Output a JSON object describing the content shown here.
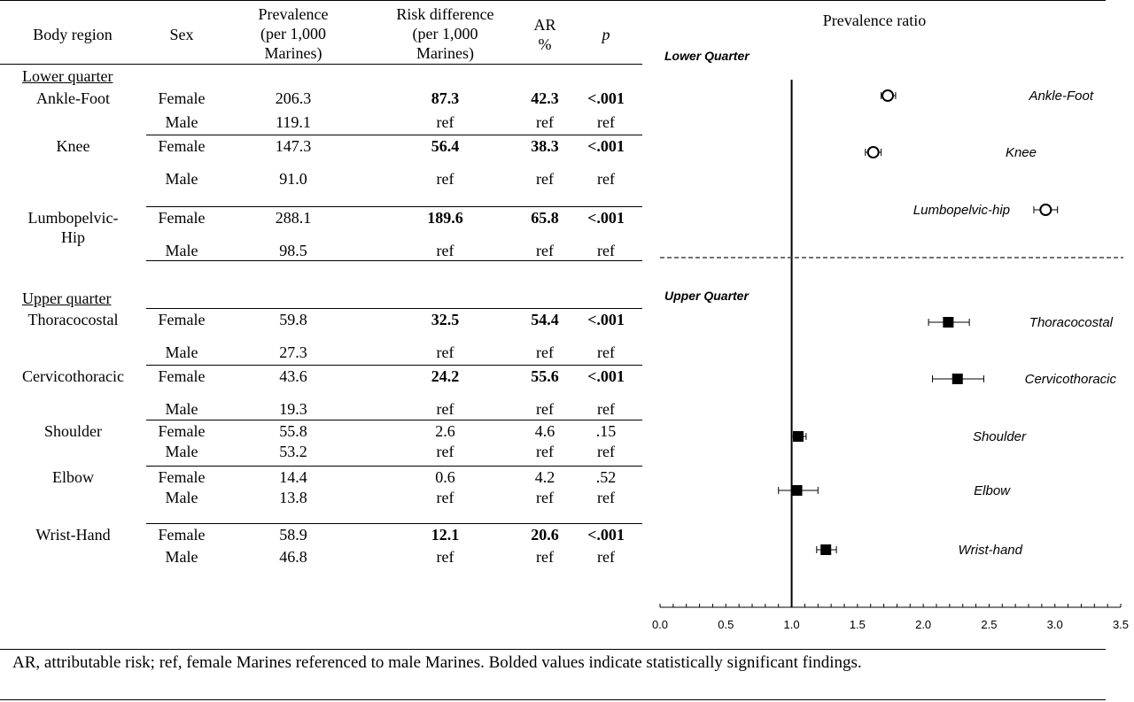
{
  "table": {
    "headers": {
      "region": "Body region",
      "sex": "Sex",
      "prevalence": [
        "Prevalence",
        "(per 1,000",
        "Marines)"
      ],
      "risk_difference": [
        "Risk difference",
        "(per 1,000",
        "Marines)"
      ],
      "ar": [
        "AR",
        "%"
      ],
      "p": "p"
    },
    "sections": [
      "Lower quarter",
      "Upper quarter"
    ],
    "rows": [
      {
        "region": "Ankle-Foot",
        "female": {
          "sex": "Female",
          "prev": "206.3",
          "rd": "87.3",
          "ar": "42.3",
          "p": "<.001"
        },
        "male": {
          "sex": "Male",
          "prev": "119.1",
          "rd": "ref",
          "ar": "ref",
          "p": "ref"
        }
      },
      {
        "region": "Knee",
        "female": {
          "sex": "Female",
          "prev": "147.3",
          "rd": "56.4",
          "ar": "38.3",
          "p": "<.001"
        },
        "male": {
          "sex": "Male",
          "prev": "91.0",
          "rd": "ref",
          "ar": "ref",
          "p": "ref"
        }
      },
      {
        "region": "Lumbopelvic-\nHip",
        "female": {
          "sex": "Female",
          "prev": "288.1",
          "rd": "189.6",
          "ar": "65.8",
          "p": "<.001"
        },
        "male": {
          "sex": "Male",
          "prev": "98.5",
          "rd": "ref",
          "ar": "ref",
          "p": "ref"
        }
      },
      {
        "region": "Thoracocostal",
        "female": {
          "sex": "Female",
          "prev": "59.8",
          "rd": "32.5",
          "ar": "54.4",
          "p": "<.001"
        },
        "male": {
          "sex": "Male",
          "prev": "27.3",
          "rd": "ref",
          "ar": "ref",
          "p": "ref"
        }
      },
      {
        "region": "Cervicothoracic",
        "female": {
          "sex": "Female",
          "prev": "43.6",
          "rd": "24.2",
          "ar": "55.6",
          "p": "<.001"
        },
        "male": {
          "sex": "Male",
          "prev": "19.3",
          "rd": "ref",
          "ar": "ref",
          "p": "ref"
        }
      },
      {
        "region": "Shoulder",
        "female": {
          "sex": "Female",
          "prev": "55.8",
          "rd": "2.6",
          "ar": "4.6",
          "p": ".15"
        },
        "male": {
          "sex": "Male",
          "prev": "53.2",
          "rd": "ref",
          "ar": "ref",
          "p": "ref"
        }
      },
      {
        "region": "Elbow",
        "female": {
          "sex": "Female",
          "prev": "14.4",
          "rd": "0.6",
          "ar": "4.2",
          "p": ".52"
        },
        "male": {
          "sex": "Male",
          "prev": "13.8",
          "rd": "ref",
          "ar": "ref",
          "p": "ref"
        }
      },
      {
        "region": "Wrist-Hand",
        "female": {
          "sex": "Female",
          "prev": "58.9",
          "rd": "12.1",
          "ar": "20.6",
          "p": "<.001"
        },
        "male": {
          "sex": "Male",
          "prev": "46.8",
          "rd": "ref",
          "ar": "ref",
          "p": "ref"
        }
      }
    ],
    "footnote": "AR, attributable risk; ref, female Marines referenced to male Marines. Bolded values indicate statistically significant findings."
  },
  "chart_data": {
    "type": "scatter",
    "title": "Prevalence ratio",
    "reference_line": 1.0,
    "xlim": [
      0.0,
      3.5
    ],
    "xticks": [
      "0.0",
      "0.5",
      "1.0",
      "1.5",
      "2.0",
      "2.5",
      "3.0",
      "3.5"
    ],
    "groups": [
      {
        "name": "Lower Quarter",
        "marker": "open-circle",
        "points": [
          {
            "label": "Ankle-Foot",
            "value": 1.73,
            "ci": [
              1.68,
              1.79
            ]
          },
          {
            "label": "Knee",
            "value": 1.62,
            "ci": [
              1.56,
              1.68
            ]
          },
          {
            "label": "Lumbopelvic-hip",
            "value": 2.93,
            "ci": [
              2.84,
              3.02
            ]
          }
        ]
      },
      {
        "name": "Upper Quarter",
        "marker": "filled-square",
        "points": [
          {
            "label": "Thoracocostal",
            "value": 2.19,
            "ci": [
              2.04,
              2.35
            ]
          },
          {
            "label": "Cervicothoracic",
            "value": 2.26,
            "ci": [
              2.07,
              2.46
            ]
          },
          {
            "label": "Shoulder",
            "value": 1.05,
            "ci": [
              1.0,
              1.11
            ]
          },
          {
            "label": "Elbow",
            "value": 1.04,
            "ci": [
              0.9,
              1.2
            ]
          },
          {
            "label": "Wrist-hand",
            "value": 1.26,
            "ci": [
              1.19,
              1.34
            ]
          }
        ]
      }
    ]
  }
}
